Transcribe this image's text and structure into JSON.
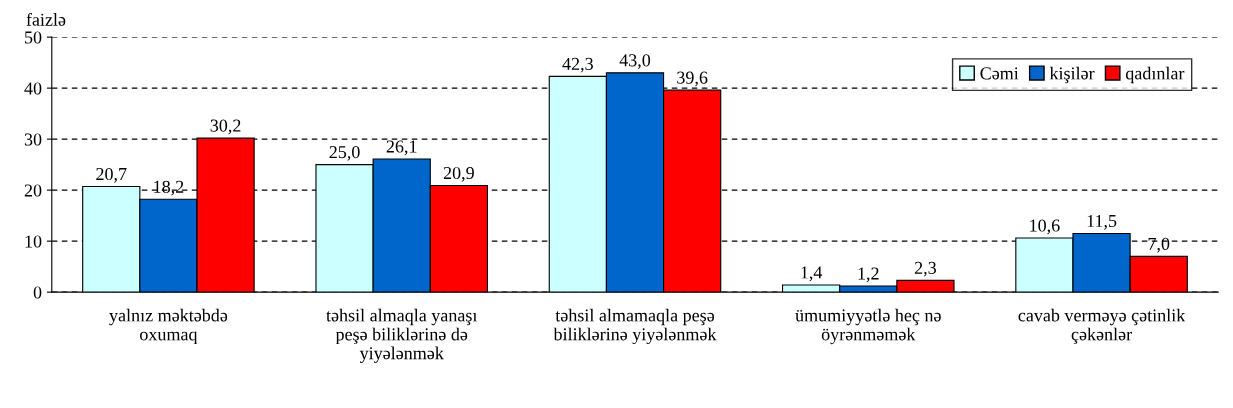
{
  "chart_data": {
    "type": "bar",
    "ylabel": "faizlə",
    "categories": [
      "yalnız məktəbdə\noxumaq",
      "təhsil almaqla yanaşı\npeşə biliklərinə də\nyiyələnmək",
      "təhsil almamaqla peşə\nbiliklərinə yiyələnmək",
      "ümumiyyətlə heç nə\nöyrənməmək",
      "cavab verməyə çətinlik\nçəkənlər"
    ],
    "series": [
      {
        "name": "Cəmi",
        "color": "#ccffff",
        "values": [
          20.7,
          25.0,
          42.3,
          1.4,
          10.6
        ],
        "value_labels": [
          "20,7",
          "25,0",
          "42,3",
          "1,4",
          "10,6"
        ]
      },
      {
        "name": "kişilər",
        "color": "#0066cc",
        "values": [
          18.2,
          26.1,
          43.0,
          1.2,
          11.5
        ],
        "value_labels": [
          "18,2",
          "26,1",
          "43,0",
          "1,2",
          "11,5"
        ]
      },
      {
        "name": "qadınlar",
        "color": "#ff0000",
        "values": [
          30.2,
          20.9,
          39.6,
          2.3,
          7.0
        ],
        "value_labels": [
          "30,2",
          "20,9",
          "39,6",
          "2,3",
          "7,0"
        ]
      }
    ],
    "ylim": [
      0,
      50
    ],
    "yticks": [
      0,
      10,
      20,
      30,
      40,
      50
    ],
    "grid": "y",
    "legend": "top right"
  }
}
